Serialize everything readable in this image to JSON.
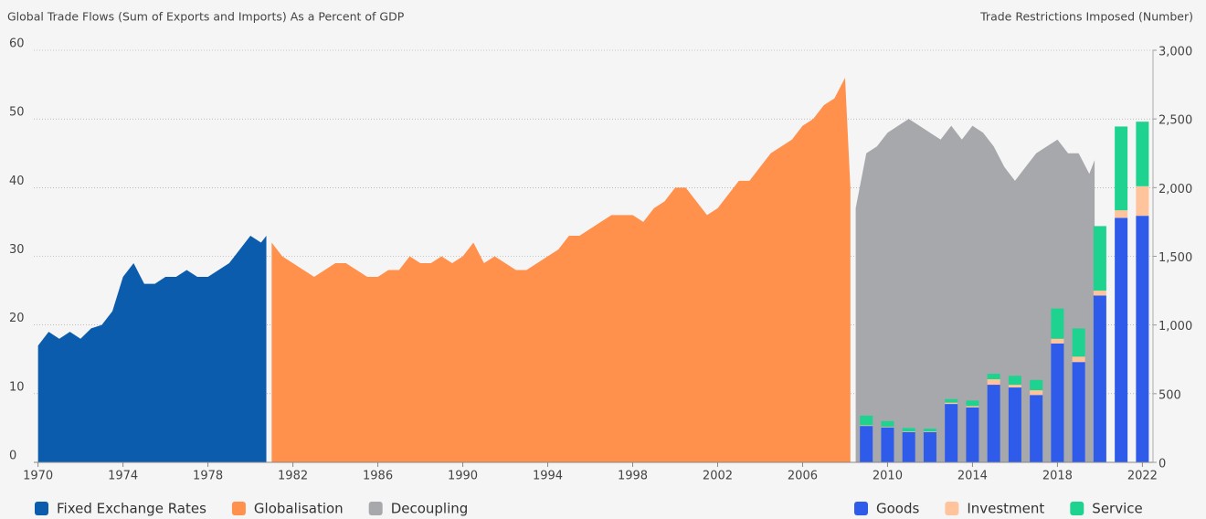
{
  "chart_data": {
    "type": "area_bar",
    "y_axis_title": "Global Trade Flows (Sum of Exports and Imports) As a Percent of GDP",
    "y2_axis_title": "Trade Restrictions Imposed (Number)",
    "xlim": [
      1969.8,
      2022.5
    ],
    "xticks": [
      1970,
      1974,
      1978,
      1982,
      1986,
      1990,
      1994,
      1998,
      2002,
      2006,
      2010,
      2014,
      2018,
      2022
    ],
    "ylim": [
      0,
      60
    ],
    "yticks": [
      0,
      10,
      20,
      30,
      40,
      50,
      60
    ],
    "y2lim": [
      0,
      3000
    ],
    "y2ticks": [
      0,
      500,
      {
        "value": 1000,
        "label": "1,000"
      },
      {
        "value": 1500,
        "label": "1,500"
      },
      {
        "value": 2000,
        "label": "2,000"
      },
      {
        "value": 2500,
        "label": "2,500"
      },
      {
        "value": 3000,
        "label": "3,000"
      }
    ],
    "grid": true,
    "series": [
      {
        "name": "Fixed Exchange Rates",
        "type": "area",
        "color": "#0b5cad",
        "x": [
          1970,
          1970.5,
          1971,
          1971.5,
          1972,
          1972.5,
          1973,
          1973.5,
          1974,
          1974.5,
          1975,
          1975.5,
          1976,
          1976.5,
          1977,
          1977.5,
          1978,
          1978.5,
          1979,
          1979.5,
          1980,
          1980.5,
          1980.75
        ],
        "values": [
          17,
          19,
          18,
          19,
          18,
          19.5,
          20,
          22,
          27,
          29,
          26,
          26,
          27,
          27,
          28,
          27,
          27,
          28,
          29,
          31,
          33,
          32,
          33
        ]
      },
      {
        "name": "Globalisation",
        "type": "area",
        "color": "#ff914d",
        "x": [
          1981,
          1981.5,
          1982,
          1982.5,
          1983,
          1983.5,
          1984,
          1984.5,
          1985,
          1985.5,
          1986,
          1986.5,
          1987,
          1987.5,
          1988,
          1988.5,
          1989,
          1989.5,
          1990,
          1990.5,
          1991,
          1991.5,
          1992,
          1992.5,
          1993,
          1993.5,
          1994,
          1994.5,
          1995,
          1995.5,
          1996,
          1996.5,
          1997,
          1997.5,
          1998,
          1998.5,
          1999,
          1999.5,
          2000,
          2000.5,
          2001,
          2001.5,
          2002,
          2002.5,
          2003,
          2003.5,
          2004,
          2004.5,
          2005,
          2005.5,
          2006,
          2006.5,
          2007,
          2007.5,
          2008,
          2008.25
        ],
        "values": [
          32,
          30,
          29,
          28,
          27,
          28,
          29,
          29,
          28,
          27,
          27,
          28,
          28,
          30,
          29,
          29,
          30,
          29,
          30,
          32,
          29,
          30,
          29,
          28,
          28,
          29,
          30,
          31,
          33,
          33,
          34,
          35,
          36,
          36,
          36,
          35,
          37,
          38,
          40,
          40,
          38,
          36,
          37,
          39,
          41,
          41,
          43,
          45,
          46,
          47,
          49,
          50,
          52,
          53,
          56,
          40
        ]
      },
      {
        "name": "Decoupling",
        "type": "area",
        "color": "#a6a8ab",
        "x": [
          2008.5,
          2009,
          2009.5,
          2010,
          2010.5,
          2011,
          2011.5,
          2012,
          2012.5,
          2013,
          2013.5,
          2014,
          2014.5,
          2015,
          2015.5,
          2016,
          2016.5,
          2017,
          2017.5,
          2018,
          2018.5,
          2019,
          2019.5,
          2019.75
        ],
        "values": [
          37,
          45,
          46,
          48,
          49,
          50,
          49,
          48,
          47,
          49,
          47,
          49,
          48,
          46,
          43,
          41,
          43,
          45,
          46,
          47,
          45,
          45,
          42,
          44
        ]
      },
      {
        "name": "Goods",
        "type": "bar",
        "axis": "y2",
        "color": "#2f5bea",
        "x": [
          2009,
          2010,
          2011,
          2012,
          2013,
          2014,
          2015,
          2016,
          2017,
          2018,
          2019,
          2020,
          2021,
          2022
        ],
        "values": [
          265,
          255,
          220,
          220,
          425,
          400,
          565,
          545,
          490,
          865,
          730,
          1215,
          1780,
          1795
        ]
      },
      {
        "name": "Investment",
        "type": "bar",
        "axis": "y2",
        "color": "#ffc49b",
        "x": [
          2009,
          2010,
          2011,
          2012,
          2013,
          2014,
          2015,
          2016,
          2017,
          2018,
          2019,
          2020,
          2021,
          2022
        ],
        "values": [
          5,
          5,
          5,
          5,
          10,
          10,
          40,
          20,
          35,
          35,
          40,
          35,
          55,
          215
        ]
      },
      {
        "name": "Service",
        "type": "bar",
        "axis": "y2",
        "color": "#1ed38f",
        "x": [
          2009,
          2010,
          2011,
          2012,
          2013,
          2014,
          2015,
          2016,
          2017,
          2018,
          2019,
          2020,
          2021,
          2022
        ],
        "values": [
          70,
          40,
          25,
          20,
          25,
          40,
          40,
          65,
          75,
          220,
          205,
          470,
          610,
          470
        ]
      }
    ]
  }
}
